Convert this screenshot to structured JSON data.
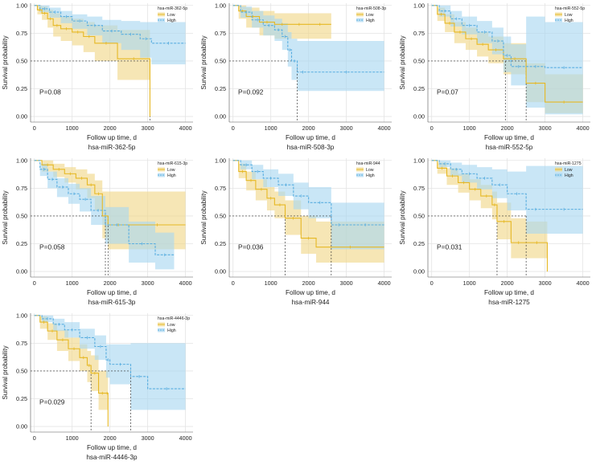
{
  "colors": {
    "low": "#E6B824",
    "high": "#5AAEE0",
    "low_band": "#F0D788",
    "high_band": "#A8D6F0",
    "grid": "#E4E4E4",
    "median": "#333333"
  },
  "chart_data": [
    {
      "type": "line",
      "title": "hsa-miR-362-5p",
      "pvalue": "P=0.08",
      "xlabel": "Follow up time, d",
      "ylabel": "Survival probability",
      "xlim": [
        -100,
        4200
      ],
      "ylim": [
        -0.05,
        1.02
      ],
      "xticks": [
        "0",
        "1000",
        "2000",
        "3000",
        "4000"
      ],
      "yticks": [
        "0.00",
        "0.25",
        "0.50",
        "0.75",
        "1.00"
      ],
      "legend": {
        "title": "hsa-miR-362-5p",
        "position": "top-right"
      },
      "median_lines": [
        3060
      ],
      "series": [
        {
          "name": "Low",
          "x": [
            0,
            80,
            200,
            350,
            500,
            700,
            1000,
            1300,
            1600,
            2200,
            3060
          ],
          "y": [
            1,
            0.96,
            0.93,
            0.88,
            0.82,
            0.79,
            0.76,
            0.72,
            0.66,
            0.52,
            0
          ],
          "upper": [
            1,
            1,
            0.99,
            0.96,
            0.93,
            0.9,
            0.88,
            0.85,
            0.82,
            0.78,
            0.78
          ],
          "lower": [
            1,
            0.92,
            0.87,
            0.8,
            0.72,
            0.68,
            0.64,
            0.58,
            0.5,
            0.33,
            0.33
          ]
        },
        {
          "name": "High",
          "x": [
            0,
            150,
            400,
            700,
            1000,
            1400,
            1800,
            2300,
            2800,
            3100,
            4000
          ],
          "y": [
            1,
            0.97,
            0.94,
            0.9,
            0.86,
            0.82,
            0.77,
            0.74,
            0.7,
            0.66,
            0.66
          ],
          "upper": [
            1,
            1,
            0.98,
            0.95,
            0.92,
            0.9,
            0.87,
            0.86,
            0.85,
            0.85,
            0.85
          ],
          "lower": [
            1,
            0.94,
            0.89,
            0.84,
            0.79,
            0.73,
            0.66,
            0.6,
            0.53,
            0.47,
            0.47
          ]
        }
      ]
    },
    {
      "type": "line",
      "title": "hsa-miR-508-3p",
      "pvalue": "P=0.092",
      "xlabel": "Follow up time, d",
      "ylabel": "Survival probability",
      "xlim": [
        -100,
        4200
      ],
      "ylim": [
        -0.05,
        1.02
      ],
      "xticks": [
        "0",
        "1000",
        "2000",
        "3000",
        "4000"
      ],
      "yticks": [
        "0.00",
        "0.25",
        "0.50",
        "0.75",
        "1.00"
      ],
      "legend": {
        "title": "hsa-miR-508-3p",
        "position": "top-right"
      },
      "median_lines": [
        1700
      ],
      "series": [
        {
          "name": "Low",
          "x": [
            0,
            150,
            350,
            700,
            1100,
            1500,
            2000,
            2600
          ],
          "y": [
            1,
            0.95,
            0.9,
            0.85,
            0.83,
            0.83,
            0.83,
            0.83
          ],
          "upper": [
            1,
            1,
            0.98,
            0.95,
            0.93,
            0.93,
            0.93,
            0.93
          ],
          "lower": [
            1,
            0.88,
            0.8,
            0.73,
            0.7,
            0.7,
            0.7,
            0.7
          ]
        },
        {
          "name": "High",
          "x": [
            0,
            200,
            500,
            800,
            1100,
            1300,
            1450,
            1550,
            1700,
            2000,
            4000
          ],
          "y": [
            1,
            0.94,
            0.87,
            0.82,
            0.78,
            0.72,
            0.6,
            0.5,
            0.4,
            0.4,
            0.4
          ],
          "upper": [
            1,
            0.99,
            0.95,
            0.91,
            0.88,
            0.84,
            0.76,
            0.7,
            0.68,
            0.68,
            0.68
          ],
          "lower": [
            1,
            0.89,
            0.8,
            0.73,
            0.68,
            0.6,
            0.45,
            0.33,
            0.23,
            0.23,
            0.23
          ]
        }
      ]
    },
    {
      "type": "line",
      "title": "hsa-miR-552-5p",
      "pvalue": "P=0.07",
      "xlabel": "Follow up time, d",
      "ylabel": "Survival probability",
      "xlim": [
        -100,
        4200
      ],
      "ylim": [
        -0.05,
        1.02
      ],
      "xticks": [
        "0",
        "1000",
        "2000",
        "3000",
        "4000"
      ],
      "yticks": [
        "0.00",
        "0.25",
        "0.50",
        "0.75",
        "1.00"
      ],
      "legend": {
        "title": "hsa-miR-552-5p",
        "position": "top-right"
      },
      "median_lines": [
        1950,
        2500
      ],
      "series": [
        {
          "name": "Low",
          "x": [
            0,
            150,
            350,
            600,
            900,
            1200,
            1500,
            1900,
            2500,
            3000,
            4000
          ],
          "y": [
            1,
            0.92,
            0.84,
            0.76,
            0.7,
            0.65,
            0.6,
            0.52,
            0.3,
            0.13,
            0.13
          ],
          "upper": [
            1,
            0.98,
            0.92,
            0.85,
            0.8,
            0.76,
            0.72,
            0.66,
            0.48,
            0.38,
            0.38
          ],
          "lower": [
            1,
            0.86,
            0.76,
            0.66,
            0.6,
            0.54,
            0.48,
            0.38,
            0.13,
            0.03,
            0.03
          ]
        },
        {
          "name": "High",
          "x": [
            0,
            200,
            500,
            800,
            1200,
            1600,
            1900,
            2100,
            2500,
            3000,
            4000
          ],
          "y": [
            1,
            0.95,
            0.88,
            0.82,
            0.76,
            0.68,
            0.55,
            0.45,
            0.45,
            0.44,
            0.44
          ],
          "upper": [
            1,
            1,
            0.95,
            0.9,
            0.86,
            0.8,
            0.72,
            0.65,
            0.9,
            0.85,
            0.85
          ],
          "lower": [
            1,
            0.9,
            0.81,
            0.74,
            0.66,
            0.56,
            0.4,
            0.28,
            0.08,
            0.02,
            0.02
          ]
        }
      ]
    },
    {
      "type": "line",
      "title": "hsa-miR-615-3p",
      "pvalue": "P=0.058",
      "xlabel": "Follow up time, d",
      "ylabel": "Survival probability",
      "xlim": [
        -100,
        4200
      ],
      "ylim": [
        -0.05,
        1.02
      ],
      "xticks": [
        "0",
        "1000",
        "2000",
        "3000",
        "4000"
      ],
      "yticks": [
        "0.00",
        "0.25",
        "0.50",
        "0.75",
        "1.00"
      ],
      "legend": {
        "title": "hsa-miR-615-3p",
        "position": "top-right"
      },
      "median_lines": [
        1880,
        1950
      ],
      "series": [
        {
          "name": "Low",
          "x": [
            0,
            200,
            500,
            800,
            1100,
            1400,
            1600,
            1800,
            1950,
            2500,
            4000
          ],
          "y": [
            1,
            0.96,
            0.92,
            0.88,
            0.84,
            0.78,
            0.7,
            0.5,
            0.42,
            0.42,
            0.42
          ],
          "upper": [
            1,
            1,
            0.97,
            0.94,
            0.92,
            0.88,
            0.82,
            0.72,
            0.72,
            0.72,
            0.72
          ],
          "lower": [
            1,
            0.9,
            0.85,
            0.8,
            0.74,
            0.66,
            0.55,
            0.3,
            0.2,
            0.2,
            0.2
          ]
        },
        {
          "name": "High",
          "x": [
            0,
            150,
            350,
            600,
            900,
            1200,
            1500,
            1880,
            2500,
            3200,
            3700
          ],
          "y": [
            1,
            0.92,
            0.83,
            0.76,
            0.7,
            0.65,
            0.55,
            0.42,
            0.25,
            0.15,
            0.15
          ],
          "upper": [
            1,
            0.97,
            0.9,
            0.84,
            0.79,
            0.75,
            0.68,
            0.58,
            0.45,
            0.35,
            0.35
          ],
          "lower": [
            1,
            0.86,
            0.75,
            0.67,
            0.61,
            0.54,
            0.42,
            0.25,
            0.08,
            0.02,
            0.02
          ]
        }
      ]
    },
    {
      "type": "line",
      "title": "hsa-miR-944",
      "pvalue": "P=0.036",
      "xlabel": "Follow up time, d",
      "ylabel": "Survival probability",
      "xlim": [
        -100,
        4200
      ],
      "ylim": [
        -0.05,
        1.02
      ],
      "xticks": [
        "0",
        "1000",
        "2000",
        "3000",
        "4000"
      ],
      "yticks": [
        "0.00",
        "0.25",
        "0.50",
        "0.75",
        "1.00"
      ],
      "legend": {
        "title": "hsa-miR-944",
        "position": "top-right"
      },
      "median_lines": [
        1380,
        2600
      ],
      "series": [
        {
          "name": "Low",
          "x": [
            0,
            150,
            350,
            600,
            900,
            1100,
            1380,
            1800,
            2200,
            4000
          ],
          "y": [
            1,
            0.9,
            0.82,
            0.74,
            0.66,
            0.6,
            0.48,
            0.3,
            0.22,
            0.22
          ],
          "upper": [
            1,
            0.97,
            0.9,
            0.83,
            0.76,
            0.72,
            0.64,
            0.5,
            0.45,
            0.45
          ],
          "lower": [
            1,
            0.84,
            0.73,
            0.64,
            0.55,
            0.48,
            0.33,
            0.16,
            0.08,
            0.08
          ]
        },
        {
          "name": "High",
          "x": [
            0,
            200,
            500,
            800,
            1200,
            1600,
            2000,
            2600,
            3000,
            4000
          ],
          "y": [
            1,
            0.96,
            0.9,
            0.84,
            0.78,
            0.68,
            0.62,
            0.42,
            0.42,
            0.42
          ],
          "upper": [
            1,
            1,
            0.96,
            0.92,
            0.88,
            0.8,
            0.76,
            0.62,
            0.62,
            0.62
          ],
          "lower": [
            1,
            0.92,
            0.83,
            0.76,
            0.68,
            0.56,
            0.48,
            0.2,
            0.2,
            0.2
          ]
        }
      ]
    },
    {
      "type": "line",
      "title": "hsa-miR-1275",
      "pvalue": "P=0.031",
      "xlabel": "Follow up time, d",
      "ylabel": "Survival probability",
      "xlim": [
        -100,
        4200
      ],
      "ylim": [
        -0.05,
        1.02
      ],
      "xticks": [
        "0",
        "1000",
        "2000",
        "3000",
        "4000"
      ],
      "yticks": [
        "0.00",
        "0.25",
        "0.50",
        "0.75",
        "1.00"
      ],
      "legend": {
        "title": "hsa-miR-1275",
        "position": "top-right"
      },
      "median_lines": [
        1730,
        2500
      ],
      "series": [
        {
          "name": "Low",
          "x": [
            0,
            150,
            400,
            700,
            1000,
            1300,
            1600,
            1730,
            2100,
            2500,
            3060
          ],
          "y": [
            1,
            0.93,
            0.86,
            0.8,
            0.74,
            0.68,
            0.6,
            0.45,
            0.26,
            0.26,
            0
          ],
          "upper": [
            1,
            0.98,
            0.93,
            0.88,
            0.83,
            0.78,
            0.72,
            0.62,
            0.48,
            0.45,
            0.45
          ],
          "lower": [
            1,
            0.88,
            0.78,
            0.71,
            0.64,
            0.57,
            0.47,
            0.29,
            0.12,
            0.12,
            0.12
          ]
        },
        {
          "name": "High",
          "x": [
            0,
            200,
            500,
            800,
            1200,
            1600,
            2000,
            2500,
            3000,
            4000
          ],
          "y": [
            1,
            0.97,
            0.92,
            0.88,
            0.84,
            0.78,
            0.7,
            0.56,
            0.56,
            0.56
          ],
          "upper": [
            1,
            1,
            0.98,
            0.96,
            0.94,
            0.92,
            0.9,
            0.95,
            0.95,
            0.95
          ],
          "lower": [
            1,
            0.94,
            0.86,
            0.8,
            0.74,
            0.66,
            0.55,
            0.34,
            0.34,
            0.34
          ]
        }
      ]
    },
    {
      "type": "line",
      "title": "hsa-miR-4446-3p",
      "pvalue": "P=0.029",
      "xlabel": "Follow up time, d",
      "ylabel": "Survival probability",
      "xlim": [
        -100,
        4200
      ],
      "ylim": [
        -0.05,
        1.02
      ],
      "xticks": [
        "0",
        "1000",
        "2000",
        "3000",
        "4000"
      ],
      "yticks": [
        "0.00",
        "0.25",
        "0.50",
        "0.75",
        "1.00"
      ],
      "legend": {
        "title": "hsa-miR-4446-3p",
        "position": "top-right"
      },
      "median_lines": [
        1500,
        2550
      ],
      "series": [
        {
          "name": "Low",
          "x": [
            0,
            150,
            350,
            600,
            900,
            1200,
            1400,
            1500,
            1700,
            1900,
            1950
          ],
          "y": [
            1,
            0.94,
            0.86,
            0.78,
            0.7,
            0.62,
            0.55,
            0.48,
            0.3,
            0.3,
            0
          ],
          "upper": [
            1,
            0.99,
            0.93,
            0.87,
            0.8,
            0.74,
            0.68,
            0.64,
            0.5,
            0.5,
            0.5
          ],
          "lower": [
            1,
            0.88,
            0.78,
            0.68,
            0.59,
            0.5,
            0.4,
            0.32,
            0.15,
            0.15,
            0.15
          ]
        },
        {
          "name": "High",
          "x": [
            0,
            200,
            500,
            800,
            1200,
            1600,
            1900,
            2000,
            2550,
            3000,
            4000
          ],
          "y": [
            1,
            0.97,
            0.92,
            0.87,
            0.8,
            0.72,
            0.6,
            0.56,
            0.45,
            0.34,
            0.34
          ],
          "upper": [
            1,
            1,
            0.97,
            0.94,
            0.88,
            0.82,
            0.74,
            0.74,
            0.75,
            0.75,
            0.75
          ],
          "lower": [
            1,
            0.94,
            0.86,
            0.8,
            0.7,
            0.6,
            0.44,
            0.38,
            0.15,
            0.15,
            0.15
          ]
        }
      ]
    }
  ]
}
